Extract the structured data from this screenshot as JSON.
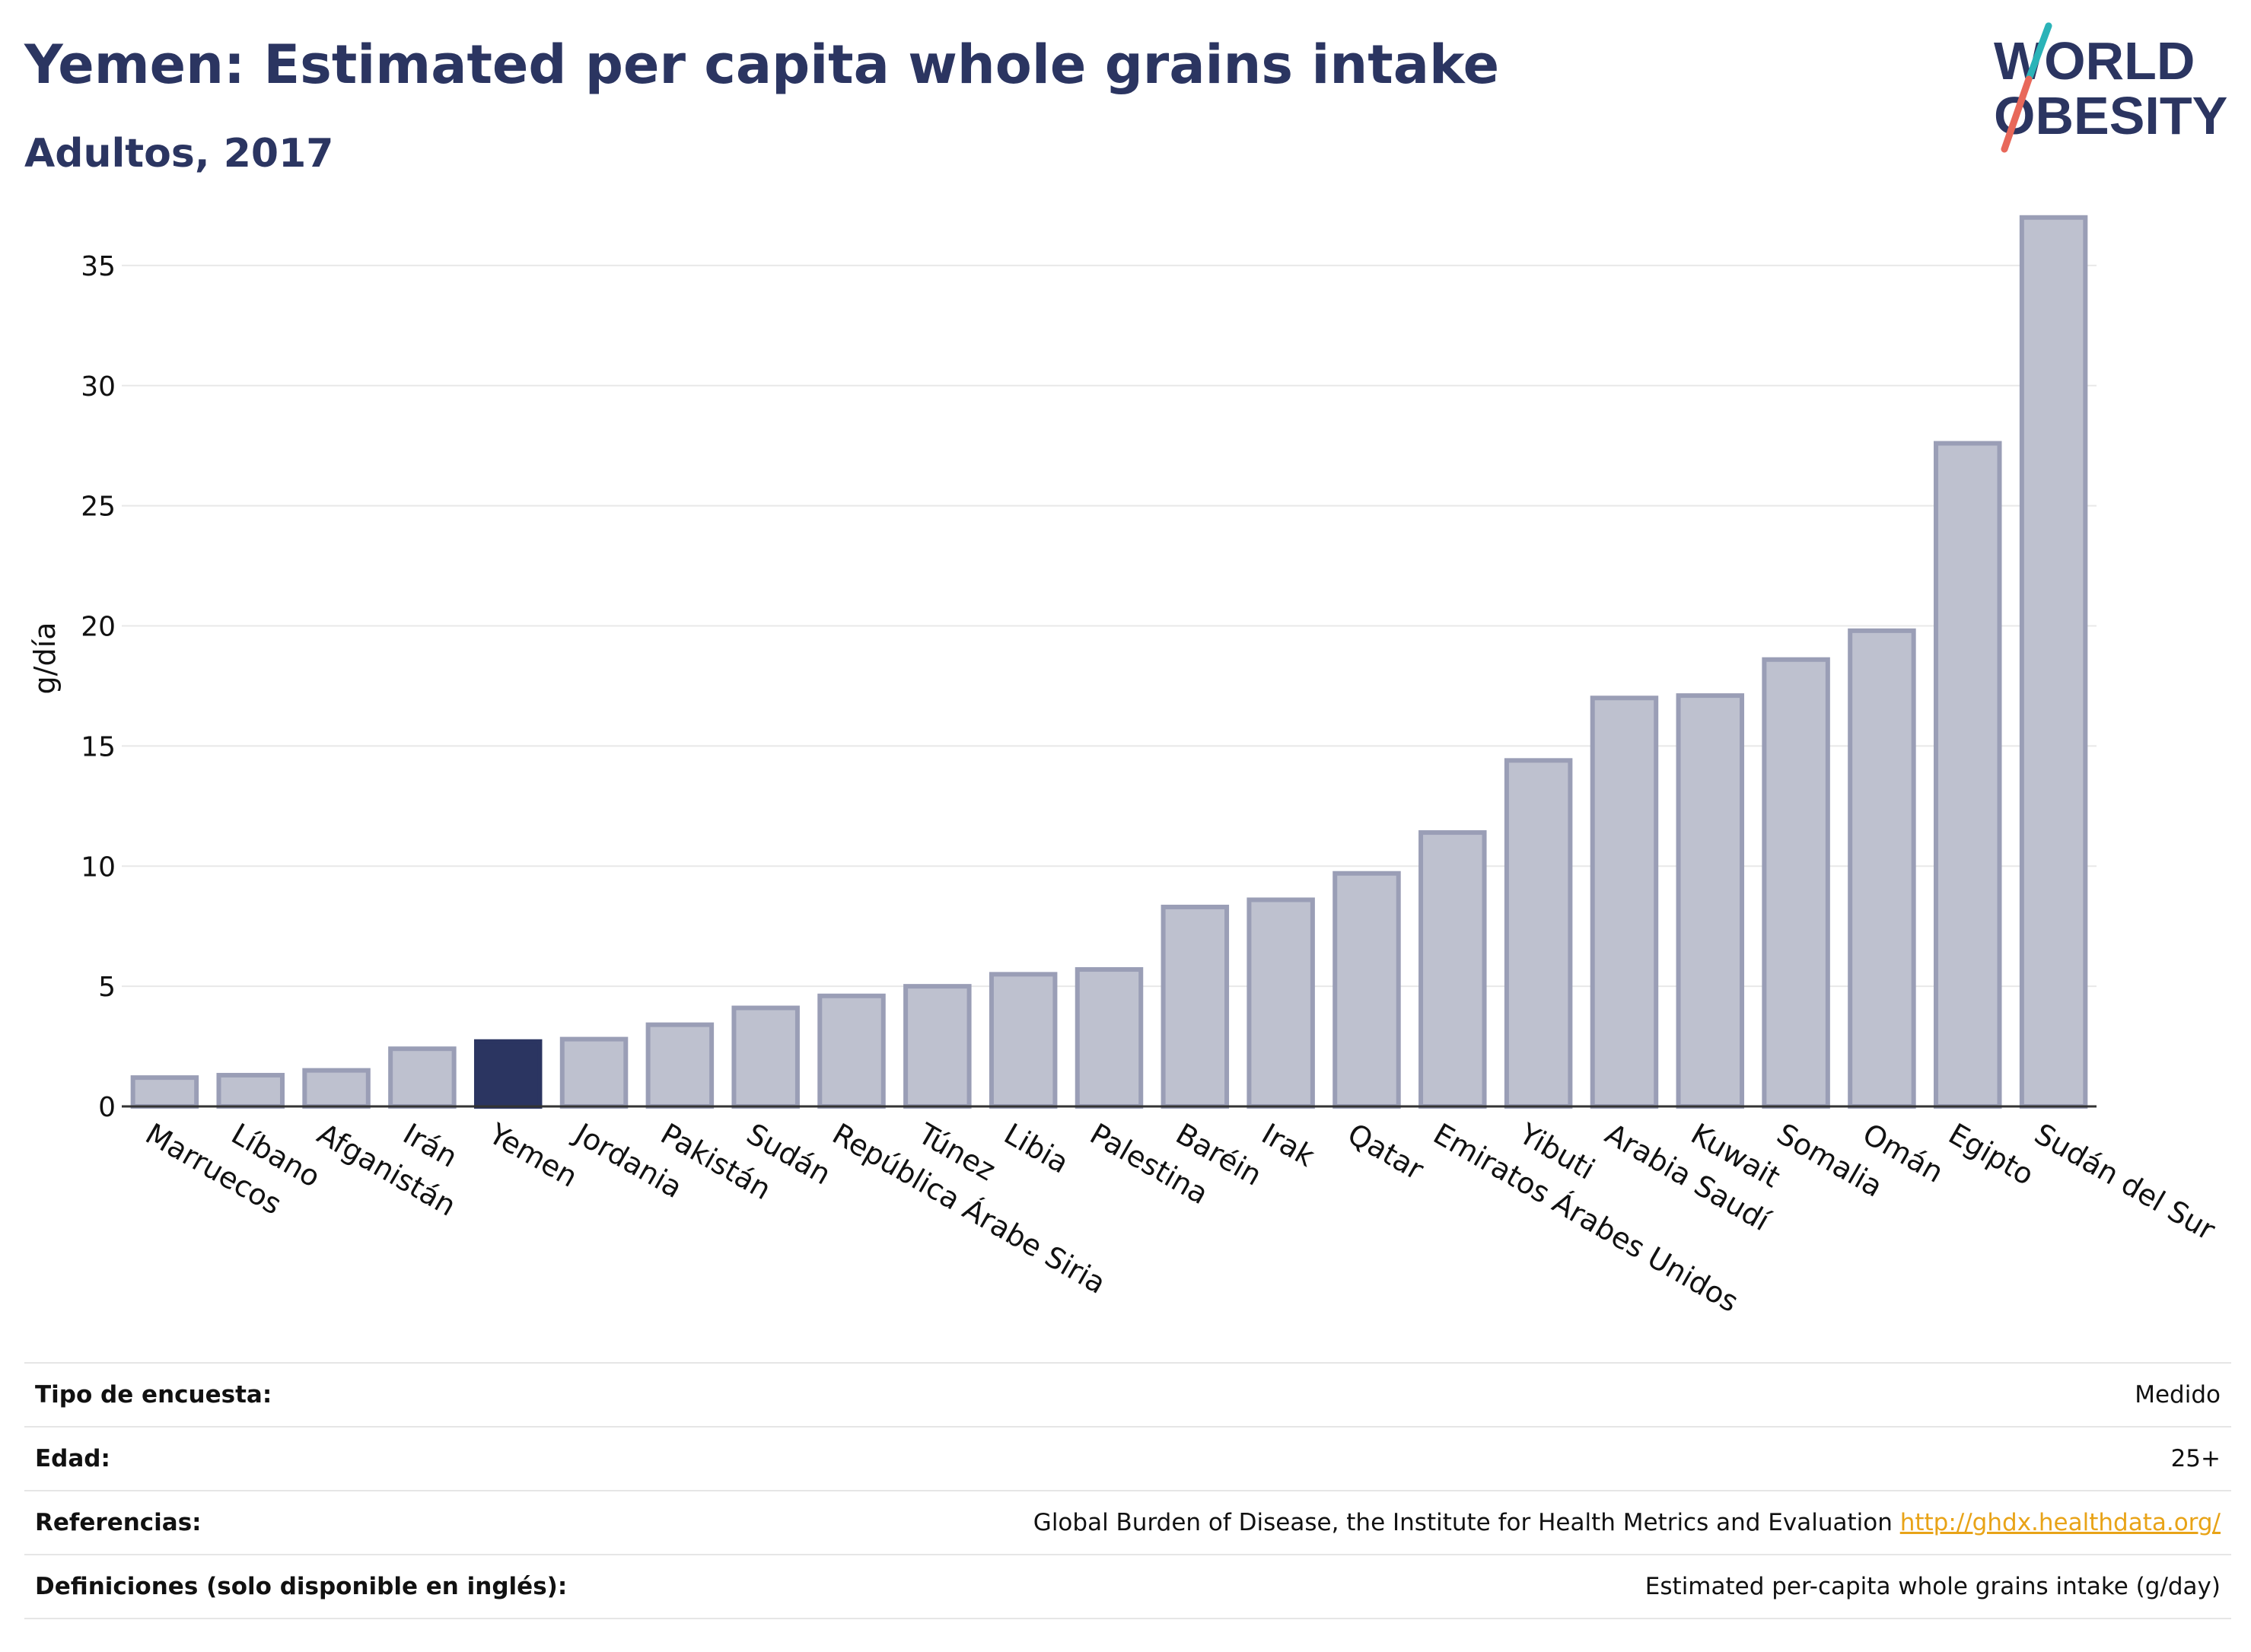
{
  "header": {
    "title": "Yemen: Estimated per capita whole grains intake",
    "subtitle": "Adultos, 2017"
  },
  "logo": {
    "line1": "WORLD",
    "line2": "OBESITY",
    "colors": {
      "text": "#2b3561",
      "slash_top": "#2bb3b8",
      "slash_bottom": "#e8685a"
    }
  },
  "chart_data": {
    "type": "bar",
    "ylabel": "g/día",
    "xlabel": "",
    "ylim": [
      0,
      37.5
    ],
    "yticks": [
      0,
      5,
      10,
      15,
      20,
      25,
      30,
      35
    ],
    "grid": true,
    "highlight": "Yemen",
    "colors": {
      "bar": "#bec1cf",
      "bar_border": "#9a9eb6",
      "highlight": "#2b3561",
      "grid": "#e8e8e8",
      "axis": "#333333"
    },
    "categories": [
      "Marruecos",
      "Líbano",
      "Afganistán",
      "Irán",
      "Yemen",
      "Jordania",
      "Pakistán",
      "Sudán",
      "República Árabe Siria",
      "Túnez",
      "Libia",
      "Palestina",
      "Baréin",
      "Irak",
      "Qatar",
      "Emiratos Árabes Unidos",
      "Yibuti",
      "Arabia Saudí",
      "Kuwait",
      "Somalia",
      "Omán",
      "Egipto",
      "Sudán del Sur"
    ],
    "values": [
      1.2,
      1.3,
      1.5,
      2.4,
      2.7,
      2.8,
      3.4,
      4.1,
      4.6,
      5.0,
      5.5,
      5.7,
      8.3,
      8.6,
      9.7,
      11.4,
      14.4,
      17.0,
      17.1,
      18.6,
      19.8,
      27.6,
      37.0
    ]
  },
  "meta": {
    "rows": [
      {
        "label": "Tipo de encuesta:",
        "value": "Medido"
      },
      {
        "label": "Edad:",
        "value": "25+"
      },
      {
        "label": "Referencias:",
        "value": "Global Burden of Disease, the Institute for Health Metrics and Evaluation",
        "link": "http://ghdx.healthdata.org/"
      },
      {
        "label": "Definiciones (solo disponible en inglés):",
        "value": "Estimated per-capita whole grains intake (g/day)"
      }
    ]
  }
}
